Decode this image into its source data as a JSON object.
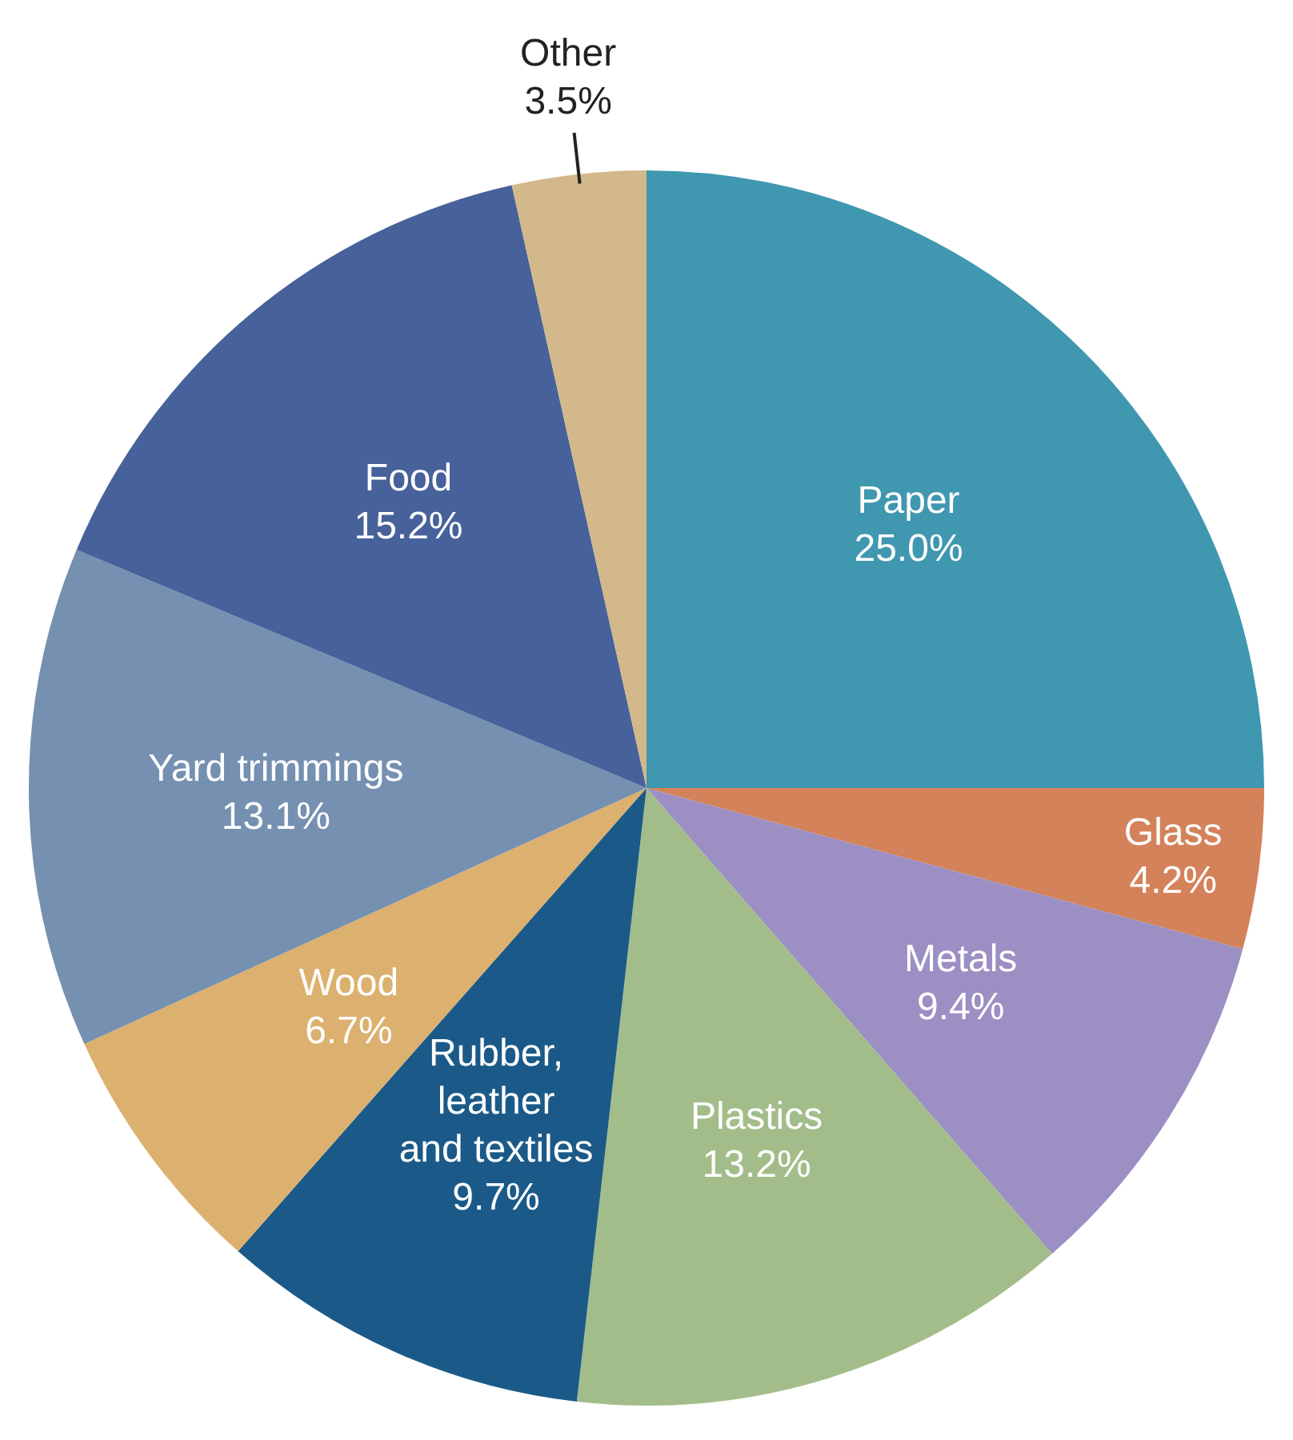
{
  "chart_data": {
    "type": "pie",
    "categories": [
      "Paper",
      "Glass",
      "Metals",
      "Plastics",
      "Rubber,\nleather\nand textiles",
      "Wood",
      "Yard trimmings",
      "Food",
      "Other"
    ],
    "values": [
      25.0,
      4.2,
      9.4,
      13.2,
      9.7,
      6.7,
      13.1,
      15.2,
      3.5
    ],
    "value_labels": [
      "25.0%",
      "4.2%",
      "9.4%",
      "13.2%",
      "9.7%",
      "6.7%",
      "13.1%",
      "15.2%",
      "3.5%"
    ],
    "colors": [
      "#3f97b0",
      "#d4825a",
      "#9b8fc4",
      "#a3bd8a",
      "#1b5a88",
      "#dcb06e",
      "#7590b0",
      "#47619a",
      "#d2b88a"
    ],
    "legend": false
  }
}
